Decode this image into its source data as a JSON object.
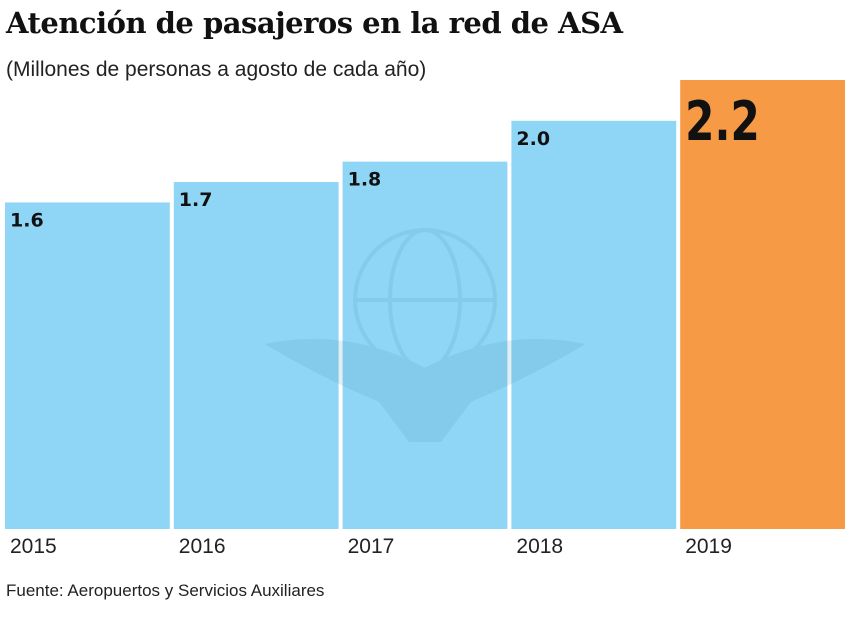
{
  "title": "Atención de pasajeros en la red de ASA",
  "subtitle": "(Millones de personas a agosto de cada año)",
  "source": "Fuente: Aeropuertos y Servicios Auxiliares",
  "chart_data": {
    "type": "bar",
    "title": "Atención de pasajeros en la red de ASA",
    "subtitle": "(Millones de personas a agosto de cada año)",
    "categories": [
      "2015",
      "2016",
      "2017",
      "2018",
      "2019"
    ],
    "values": [
      1.6,
      1.7,
      1.8,
      2.0,
      2.2
    ],
    "value_labels": [
      "1.6",
      "1.7",
      "1.8",
      "2.0",
      "2.2"
    ],
    "xlabel": "",
    "ylabel": "",
    "ylim": [
      0,
      2.2
    ],
    "grid": false,
    "colors": {
      "default": "#8fd6f6",
      "highlight": "#f79a45"
    },
    "highlight_index": 4
  }
}
